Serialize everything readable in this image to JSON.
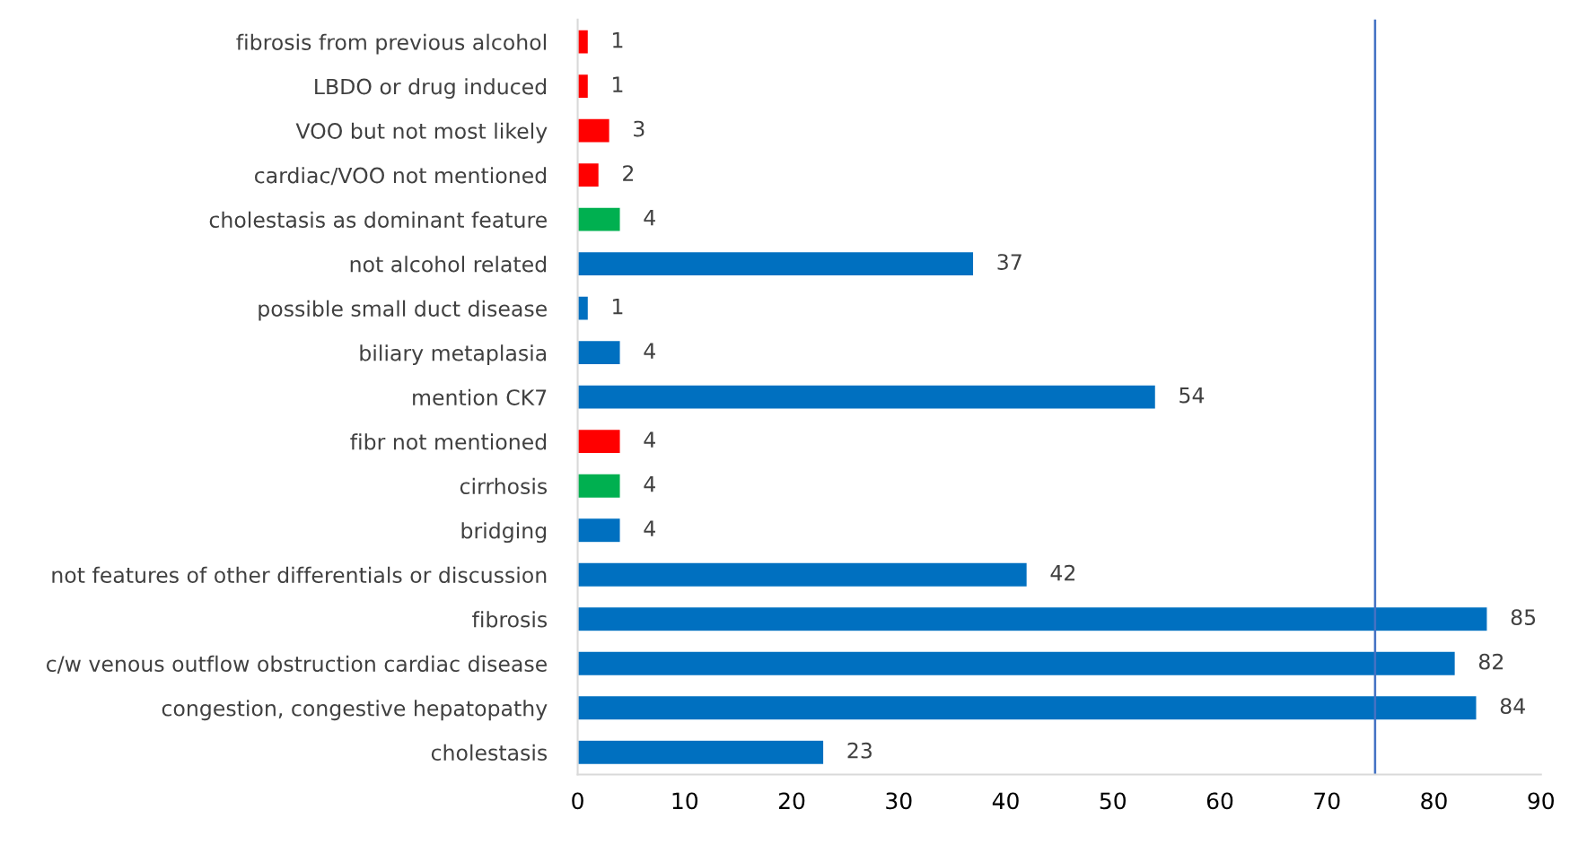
{
  "chart_data": {
    "type": "bar",
    "orientation": "horizontal",
    "categories": [
      "fibrosis from previous alcohol",
      "LBDO or drug induced",
      "VOO but not most likely",
      "cardiac/VOO not mentioned",
      "cholestasis as dominant feature",
      "not alcohol related",
      "possible small duct disease",
      "biliary metaplasia",
      "mention CK7",
      "fibr not mentioned",
      "cirrhosis",
      "bridging",
      "not features of other differentials or discussion",
      "fibrosis",
      "c/w venous outflow obstruction cardiac disease",
      "congestion, congestive hepatopathy",
      "cholestasis"
    ],
    "values": [
      1,
      1,
      3,
      2,
      4,
      37,
      1,
      4,
      54,
      4,
      4,
      4,
      42,
      85,
      82,
      84,
      23
    ],
    "colors": [
      "#ff0000",
      "#ff0000",
      "#ff0000",
      "#ff0000",
      "#00b050",
      "#0070c0",
      "#0070c0",
      "#0070c0",
      "#0070c0",
      "#ff0000",
      "#00b050",
      "#0070c0",
      "#0070c0",
      "#0070c0",
      "#0070c0",
      "#0070c0",
      "#0070c0"
    ],
    "data_labels": true,
    "xlim": [
      0,
      90
    ],
    "xticks": [
      0,
      10,
      20,
      30,
      40,
      50,
      60,
      70,
      80,
      90
    ],
    "grid": false,
    "ref_lines": [
      {
        "axis": "x",
        "value": 74.5,
        "color": "#4472c4"
      }
    ]
  }
}
